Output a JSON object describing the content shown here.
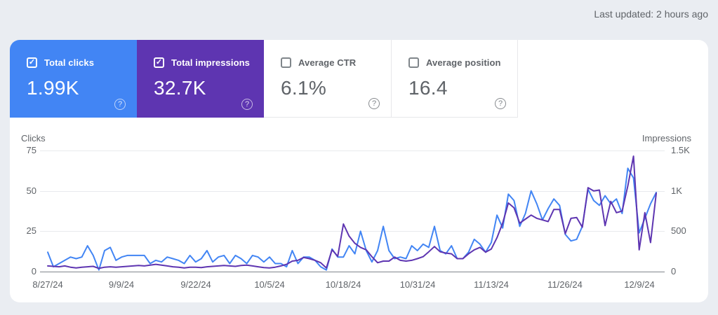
{
  "header": {
    "last_updated": "Last updated: 2 hours ago"
  },
  "icons": {
    "check": "✓",
    "help": "?"
  },
  "cards": [
    {
      "label": "Total clicks",
      "value": "1.99K",
      "checked": true,
      "bg": "#4285f4"
    },
    {
      "label": "Total impressions",
      "value": "32.7K",
      "checked": true,
      "bg": "#5e35b1"
    },
    {
      "label": "Average CTR",
      "value": "6.1%",
      "checked": false,
      "bg": ""
    },
    {
      "label": "Average position",
      "value": "16.4",
      "checked": false,
      "bg": ""
    }
  ],
  "chart_data": {
    "type": "line",
    "grid": "horizontal",
    "legend_position": "none",
    "x": [
      "8/27/24",
      "8/28/24",
      "8/29/24",
      "8/30/24",
      "8/31/24",
      "9/1/24",
      "9/2/24",
      "9/3/24",
      "9/4/24",
      "9/5/24",
      "9/6/24",
      "9/7/24",
      "9/8/24",
      "9/9/24",
      "9/10/24",
      "9/11/24",
      "9/12/24",
      "9/13/24",
      "9/14/24",
      "9/15/24",
      "9/16/24",
      "9/17/24",
      "9/18/24",
      "9/19/24",
      "9/20/24",
      "9/21/24",
      "9/22/24",
      "9/23/24",
      "9/24/24",
      "9/25/24",
      "9/26/24",
      "9/27/24",
      "9/28/24",
      "9/29/24",
      "9/30/24",
      "10/1/24",
      "10/2/24",
      "10/3/24",
      "10/4/24",
      "10/5/24",
      "10/6/24",
      "10/7/24",
      "10/8/24",
      "10/9/24",
      "10/10/24",
      "10/11/24",
      "10/12/24",
      "10/13/24",
      "10/14/24",
      "10/15/24",
      "10/16/24",
      "10/17/24",
      "10/18/24",
      "10/19/24",
      "10/20/24",
      "10/21/24",
      "10/22/24",
      "10/23/24",
      "10/24/24",
      "10/25/24",
      "10/26/24",
      "10/27/24",
      "10/28/24",
      "10/29/24",
      "10/30/24",
      "10/31/24",
      "11/1/24",
      "11/2/24",
      "11/3/24",
      "11/4/24",
      "11/5/24",
      "11/6/24",
      "11/7/24",
      "11/8/24",
      "11/9/24",
      "11/10/24",
      "11/11/24",
      "11/12/24",
      "11/13/24",
      "11/14/24",
      "11/15/24",
      "11/16/24",
      "11/17/24",
      "11/18/24",
      "11/19/24",
      "11/20/24",
      "11/21/24",
      "11/22/24",
      "11/23/24",
      "11/24/24",
      "11/25/24",
      "11/26/24",
      "11/27/24",
      "11/28/24",
      "11/29/24",
      "11/30/24",
      "12/1/24",
      "12/2/24",
      "12/3/24",
      "12/4/24",
      "12/5/24",
      "12/6/24",
      "12/7/24",
      "12/8/24",
      "12/9/24",
      "12/10/24",
      "12/11/24",
      "12/12/24"
    ],
    "series": [
      {
        "name": "Clicks",
        "axis": "left",
        "color": "#4285f4",
        "values": [
          12,
          3,
          5,
          7,
          9,
          8,
          9,
          16,
          10,
          1,
          13,
          15,
          7,
          9,
          10,
          10,
          10,
          10,
          5,
          7,
          6,
          9,
          8,
          7,
          5,
          10,
          6,
          8,
          13,
          6,
          9,
          10,
          5,
          10,
          8,
          5,
          10,
          9,
          6,
          9,
          5,
          5,
          3,
          13,
          5,
          9,
          9,
          7,
          3,
          1,
          14,
          9,
          9,
          16,
          11,
          25,
          13,
          6,
          13,
          28,
          13,
          8,
          9,
          8,
          16,
          13,
          17,
          15,
          28,
          13,
          11,
          16,
          8,
          8,
          12,
          20,
          17,
          12,
          18,
          35,
          27,
          48,
          44,
          28,
          36,
          50,
          42,
          32,
          39,
          45,
          41,
          23,
          19,
          20,
          28,
          51,
          44,
          41,
          47,
          42,
          45,
          36,
          64,
          58,
          24,
          33,
          42,
          49
        ]
      },
      {
        "name": "Impressions",
        "axis": "right",
        "color": "#5e35b1",
        "values": [
          70,
          65,
          60,
          70,
          55,
          45,
          55,
          60,
          65,
          40,
          55,
          60,
          55,
          60,
          65,
          70,
          75,
          70,
          80,
          90,
          80,
          70,
          60,
          55,
          45,
          55,
          55,
          50,
          60,
          65,
          70,
          75,
          70,
          65,
          75,
          80,
          70,
          60,
          50,
          45,
          55,
          70,
          90,
          130,
          140,
          175,
          160,
          140,
          110,
          45,
          270,
          190,
          590,
          440,
          350,
          300,
          270,
          185,
          110,
          130,
          130,
          180,
          140,
          130,
          140,
          160,
          185,
          245,
          310,
          245,
          230,
          220,
          160,
          160,
          220,
          270,
          300,
          240,
          280,
          420,
          600,
          850,
          790,
          600,
          650,
          700,
          660,
          640,
          620,
          770,
          770,
          470,
          660,
          670,
          550,
          1040,
          1000,
          1010,
          570,
          870,
          730,
          750,
          1060,
          1430,
          270,
          730,
          360,
          970
        ]
      }
    ],
    "left_axis": {
      "label": "Clicks",
      "ticks": [
        "75",
        "50",
        "25",
        "0"
      ],
      "min": 0,
      "max": 75
    },
    "right_axis": {
      "label": "Impressions",
      "ticks": [
        "1.5K",
        "1K",
        "500",
        "0"
      ],
      "min": 0,
      "max": 1500
    },
    "x_ticks": {
      "labels": [
        "8/27/24",
        "9/9/24",
        "9/22/24",
        "10/5/24",
        "10/18/24",
        "10/31/24",
        "11/13/24",
        "11/26/24",
        "12/9/24"
      ],
      "day_indices": [
        0,
        13,
        26,
        39,
        52,
        65,
        78,
        91,
        104
      ]
    }
  }
}
